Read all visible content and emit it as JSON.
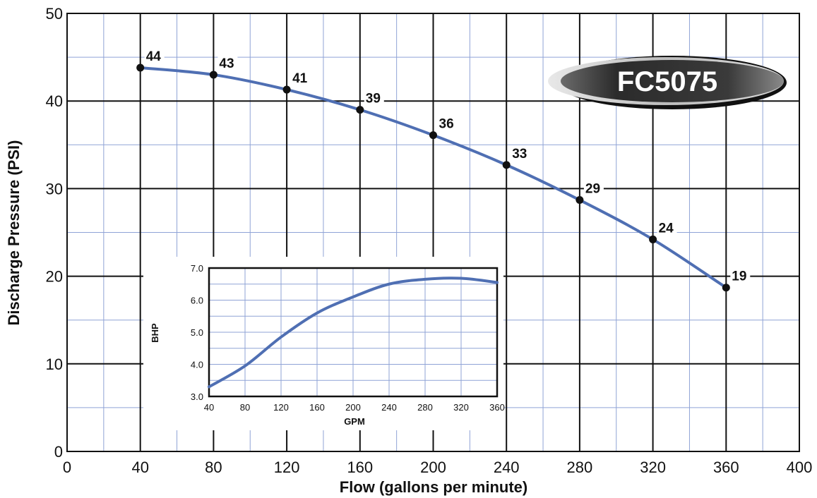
{
  "chart_data": [
    {
      "type": "line",
      "xlabel": "Flow (gallons per minute)",
      "ylabel": "Discharge Pressure (PSI)",
      "xlim": [
        0,
        400
      ],
      "ylim": [
        0,
        50
      ],
      "x_ticks": [
        "0",
        "40",
        "80",
        "120",
        "160",
        "200",
        "240",
        "280",
        "320",
        "360",
        "400"
      ],
      "y_ticks": [
        "0",
        "10",
        "20",
        "30",
        "40",
        "50"
      ],
      "grid": true,
      "series": [
        {
          "x": [
            40,
            80,
            120,
            160,
            200,
            240,
            280,
            320,
            360
          ],
          "values": [
            43.8,
            43.0,
            41.3,
            39.0,
            36.1,
            32.7,
            28.7,
            24.2,
            18.7
          ],
          "labels": [
            "44",
            "43",
            "41",
            "39",
            "36",
            "33",
            "29",
            "24",
            "19"
          ]
        }
      ],
      "color": "#4f6fb3",
      "annotations": [
        "FC5075"
      ]
    },
    {
      "type": "line",
      "xlabel": "GPM",
      "ylabel": "BHP",
      "xlim": [
        40,
        360
      ],
      "ylim": [
        3.0,
        7.0
      ],
      "x_ticks": [
        "40",
        "80",
        "120",
        "160",
        "200",
        "240",
        "280",
        "320",
        "360"
      ],
      "y_ticks": [
        "3.0",
        "4.0",
        "5.0",
        "6.0",
        "7.0"
      ],
      "grid": true,
      "series": [
        {
          "x": [
            40,
            80,
            120,
            160,
            200,
            240,
            280,
            320,
            360
          ],
          "values": [
            3.3,
            3.95,
            4.85,
            5.6,
            6.1,
            6.5,
            6.65,
            6.68,
            6.55
          ]
        }
      ],
      "color": "#4f6fb3"
    }
  ]
}
